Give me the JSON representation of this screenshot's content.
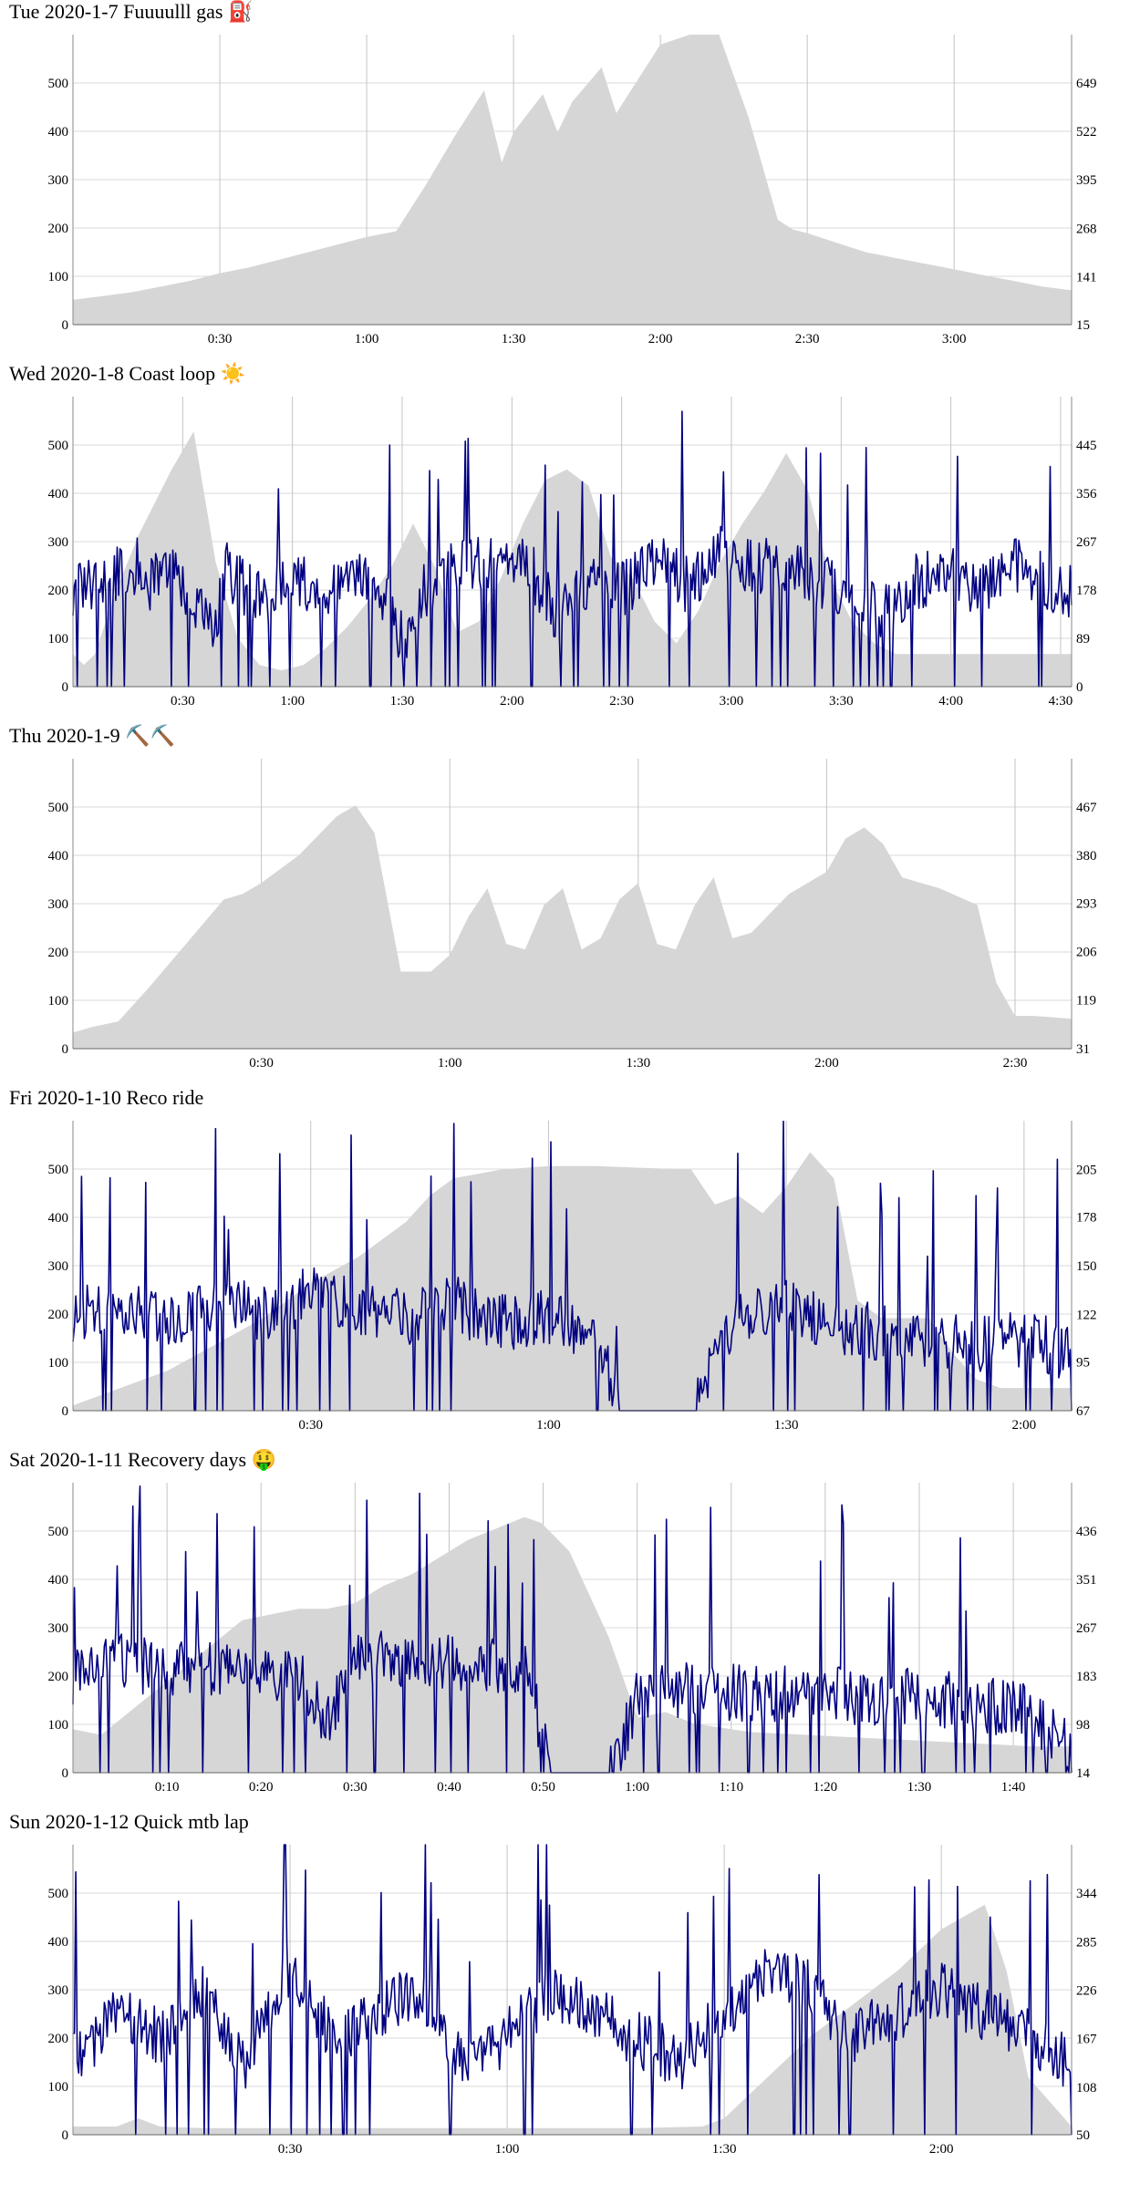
{
  "chart_data": [
    {
      "type": "area",
      "title": "Tue 2020-1-7 Fuuuulll gas ⛽",
      "xlim": [
        0,
        3.4
      ],
      "x_ticks": [
        0.5,
        1.0,
        1.5,
        2.0,
        2.5,
        3.0
      ],
      "x_tick_labels": [
        "0:30",
        "1:00",
        "1:30",
        "2:00",
        "2:30",
        "3:00"
      ],
      "y_left_ticks": [
        0,
        100,
        200,
        300,
        400,
        500
      ],
      "y_left_lim": [
        0,
        600
      ],
      "y_right_ticks": [
        15,
        141,
        268,
        395,
        522,
        649
      ],
      "y_right_lim": [
        15,
        776
      ],
      "grid": true,
      "series": [
        {
          "kind": "area",
          "color": "#d6d6d6",
          "axis": "right",
          "x": [
            0,
            0.1,
            0.2,
            0.3,
            0.4,
            0.5,
            0.6,
            0.7,
            0.8,
            0.9,
            1.0,
            1.1,
            1.2,
            1.3,
            1.4,
            1.46,
            1.5,
            1.6,
            1.65,
            1.7,
            1.8,
            1.85,
            1.9,
            2.0,
            2.1,
            2.2,
            2.3,
            2.4,
            2.45,
            2.5,
            2.6,
            2.7,
            2.8,
            2.9,
            3.0,
            3.1,
            3.2,
            3.3,
            3.4
          ],
          "values": [
            80,
            90,
            100,
            115,
            130,
            150,
            165,
            185,
            205,
            225,
            245,
            260,
            380,
            510,
            630,
            440,
            520,
            620,
            520,
            600,
            690,
            570,
            630,
            750,
            840,
            800,
            560,
            290,
            265,
            255,
            230,
            205,
            190,
            175,
            160,
            145,
            130,
            115,
            105
          ]
        }
      ]
    },
    {
      "type": "line",
      "title": "Wed 2020-1-8 Coast loop ☀️",
      "xlim": [
        0,
        4.55
      ],
      "x_ticks": [
        0.5,
        1.0,
        1.5,
        2.0,
        2.5,
        3.0,
        3.5,
        4.0,
        4.5
      ],
      "x_tick_labels": [
        "0:30",
        "1:00",
        "1:30",
        "2:00",
        "2:30",
        "3:00",
        "3:30",
        "4:00",
        "4:30"
      ],
      "y_left_ticks": [
        0,
        100,
        200,
        300,
        400,
        500
      ],
      "y_left_lim": [
        0,
        600
      ],
      "y_right_ticks": [
        0,
        89,
        178,
        267,
        356,
        445
      ],
      "y_right_lim": [
        0,
        534
      ],
      "grid": true,
      "series": [
        {
          "kind": "area",
          "color": "#d6d6d6",
          "axis": "right",
          "x": [
            0,
            0.05,
            0.1,
            0.2,
            0.3,
            0.45,
            0.55,
            0.65,
            0.75,
            0.85,
            0.95,
            1.05,
            1.15,
            1.25,
            1.35,
            1.45,
            1.55,
            1.65,
            1.75,
            1.85,
            1.95,
            2.05,
            2.15,
            2.25,
            2.35,
            2.45,
            2.55,
            2.65,
            2.75,
            2.85,
            2.95,
            3.05,
            3.15,
            3.25,
            3.35,
            3.45,
            3.55,
            3.65,
            3.75,
            3.85,
            3.95,
            4.05,
            4.15,
            4.25,
            4.35,
            4.45,
            4.55
          ],
          "values": [
            60,
            40,
            60,
            180,
            280,
            400,
            470,
            230,
            90,
            40,
            30,
            40,
            70,
            110,
            160,
            220,
            300,
            220,
            100,
            120,
            200,
            300,
            380,
            400,
            370,
            240,
            200,
            120,
            80,
            140,
            230,
            300,
            360,
            430,
            360,
            200,
            120,
            80,
            60,
            60,
            60,
            60,
            60,
            60,
            60,
            60,
            60
          ]
        },
        {
          "kind": "line",
          "color": "#000080",
          "axis": "left",
          "x": [
            0,
            0.3,
            0.35,
            0.4,
            0.65,
            0.7,
            0.85,
            1.0,
            1.15,
            1.3,
            1.45,
            1.5,
            1.6,
            1.75,
            1.9,
            2.05,
            2.2,
            2.35,
            2.5,
            2.65,
            2.8,
            2.95,
            3.1,
            3.25,
            3.4,
            3.55,
            3.7,
            3.85,
            4.0,
            4.15,
            4.3,
            4.45,
            4.55
          ],
          "values": [
            200,
            250,
            200,
            260,
            120,
            240,
            180,
            220,
            200,
            230,
            160,
            90,
            200,
            250,
            260,
            270,
            150,
            220,
            200,
            260,
            210,
            280,
            240,
            260,
            220,
            200,
            150,
            220,
            230,
            200,
            250,
            210,
            200
          ]
        }
      ]
    },
    {
      "type": "area",
      "title": "Thu 2020-1-9 ⛏️⛏️",
      "xlim": [
        0,
        2.65
      ],
      "x_ticks": [
        0.5,
        1.0,
        1.5,
        2.0,
        2.5
      ],
      "x_tick_labels": [
        "0:30",
        "1:00",
        "1:30",
        "2:00",
        "2:30"
      ],
      "y_left_ticks": [
        0,
        100,
        200,
        300,
        400,
        500
      ],
      "y_left_lim": [
        0,
        600
      ],
      "y_right_ticks": [
        31,
        119,
        206,
        293,
        380,
        467
      ],
      "y_right_lim": [
        31,
        554
      ],
      "grid": true,
      "series": [
        {
          "kind": "area",
          "color": "#d6d6d6",
          "axis": "right",
          "x": [
            0,
            0.05,
            0.12,
            0.2,
            0.3,
            0.4,
            0.45,
            0.5,
            0.6,
            0.7,
            0.75,
            0.8,
            0.87,
            0.95,
            1.0,
            1.05,
            1.1,
            1.15,
            1.2,
            1.25,
            1.3,
            1.35,
            1.4,
            1.45,
            1.5,
            1.55,
            1.6,
            1.65,
            1.7,
            1.75,
            1.8,
            1.9,
            2.0,
            2.05,
            2.1,
            2.15,
            2.2,
            2.3,
            2.4,
            2.45,
            2.5,
            2.55,
            2.65
          ],
          "values": [
            60,
            70,
            80,
            140,
            220,
            300,
            310,
            330,
            380,
            450,
            470,
            420,
            170,
            170,
            200,
            270,
            320,
            220,
            210,
            290,
            320,
            210,
            230,
            300,
            330,
            220,
            210,
            290,
            340,
            230,
            240,
            310,
            350,
            410,
            430,
            400,
            340,
            320,
            290,
            150,
            90,
            90,
            85
          ]
        }
      ]
    },
    {
      "type": "line",
      "title": "Fri 2020-1-10 Reco ride",
      "xlim": [
        0,
        2.1
      ],
      "x_ticks": [
        0.5,
        1.0,
        1.5,
        2.0
      ],
      "x_tick_labels": [
        "0:30",
        "1:00",
        "1:30",
        "2:00"
      ],
      "y_left_ticks": [
        0,
        100,
        200,
        300,
        400,
        500
      ],
      "y_left_lim": [
        0,
        600
      ],
      "y_right_ticks": [
        67,
        95,
        122,
        150,
        178,
        205
      ],
      "y_right_lim": [
        67,
        233
      ],
      "grid": true,
      "series": [
        {
          "kind": "area",
          "color": "#d6d6d6",
          "axis": "right",
          "x": [
            0,
            0.1,
            0.2,
            0.3,
            0.4,
            0.5,
            0.6,
            0.7,
            0.75,
            0.8,
            0.9,
            1.0,
            1.1,
            1.2,
            1.3,
            1.35,
            1.4,
            1.45,
            1.5,
            1.55,
            1.6,
            1.65,
            1.7,
            1.75,
            1.8,
            1.85,
            1.9,
            1.95,
            2.0,
            2.1
          ],
          "values": [
            70,
            80,
            90,
            105,
            120,
            140,
            155,
            175,
            190,
            200,
            205,
            207,
            207,
            206,
            205,
            185,
            190,
            180,
            195,
            215,
            200,
            130,
            120,
            120,
            120,
            100,
            85,
            80,
            80,
            80
          ]
        },
        {
          "kind": "line",
          "color": "#000080",
          "axis": "left",
          "x": [
            0,
            0.1,
            0.2,
            0.3,
            0.4,
            0.5,
            0.6,
            0.7,
            0.8,
            0.9,
            1.0,
            1.1,
            1.15,
            1.3,
            1.4,
            1.5,
            1.6,
            1.7,
            1.8,
            1.9,
            2.0,
            2.1
          ],
          "values": [
            200,
            220,
            180,
            230,
            200,
            240,
            210,
            190,
            220,
            180,
            200,
            150,
            0,
            0,
            200,
            220,
            180,
            160,
            150,
            140,
            150,
            120
          ]
        }
      ]
    },
    {
      "type": "line",
      "title": "Sat 2020-1-11 Recovery days 🤑",
      "xlim": [
        0,
        1.77
      ],
      "x_ticks": [
        0.1667,
        0.3333,
        0.5,
        0.6667,
        0.8333,
        1.0,
        1.1667,
        1.3333,
        1.5,
        1.6667
      ],
      "x_tick_labels": [
        "0:10",
        "0:20",
        "0:30",
        "0:40",
        "0:50",
        "1:00",
        "1:10",
        "1:20",
        "1:30",
        "1:40"
      ],
      "y_left_ticks": [
        0,
        100,
        200,
        300,
        400,
        500
      ],
      "y_left_lim": [
        0,
        600
      ],
      "y_right_ticks": [
        14,
        98,
        183,
        267,
        351,
        436
      ],
      "y_right_lim": [
        14,
        520
      ],
      "grid": true,
      "series": [
        {
          "kind": "area",
          "color": "#d6d6d6",
          "axis": "right",
          "x": [
            0,
            0.05,
            0.1,
            0.2,
            0.3,
            0.4,
            0.45,
            0.5,
            0.55,
            0.6,
            0.7,
            0.8,
            0.83,
            0.88,
            0.95,
            1.0,
            1.05,
            1.1,
            1.2,
            1.3,
            1.4,
            1.5,
            1.6,
            1.7,
            1.77
          ],
          "values": [
            90,
            80,
            120,
            200,
            280,
            300,
            300,
            310,
            340,
            360,
            420,
            460,
            450,
            400,
            250,
            110,
            120,
            100,
            85,
            80,
            75,
            70,
            65,
            60,
            60
          ]
        },
        {
          "kind": "line",
          "color": "#000080",
          "axis": "left",
          "x": [
            0,
            0.05,
            0.1,
            0.2,
            0.3,
            0.4,
            0.45,
            0.5,
            0.6,
            0.7,
            0.8,
            0.85,
            0.9,
            0.95,
            1.0,
            1.1,
            1.2,
            1.3,
            1.4,
            1.5,
            1.6,
            1.7,
            1.77
          ],
          "values": [
            200,
            250,
            220,
            220,
            210,
            200,
            100,
            250,
            220,
            230,
            220,
            0,
            0,
            0,
            150,
            180,
            160,
            170,
            150,
            160,
            140,
            130,
            40
          ]
        }
      ]
    },
    {
      "type": "line",
      "title": "Sun 2020-1-12 Quick mtb lap",
      "xlim": [
        0,
        2.3
      ],
      "x_ticks": [
        0.5,
        1.0,
        1.5,
        2.0
      ],
      "x_tick_labels": [
        "0:30",
        "1:00",
        "1:30",
        "2:00"
      ],
      "y_left_ticks": [
        0,
        100,
        200,
        300,
        400,
        500
      ],
      "y_left_lim": [
        0,
        600
      ],
      "y_right_ticks": [
        50,
        108,
        167,
        226,
        285,
        344
      ],
      "y_right_lim": [
        50,
        403
      ],
      "grid": true,
      "series": [
        {
          "kind": "area",
          "color": "#d6d6d6",
          "axis": "right",
          "x": [
            0,
            0.1,
            0.15,
            0.2,
            0.3,
            0.5,
            0.7,
            0.9,
            1.1,
            1.3,
            1.45,
            1.5,
            1.6,
            1.7,
            1.8,
            1.9,
            2.0,
            2.1,
            2.15,
            2.2,
            2.3
          ],
          "values": [
            60,
            60,
            70,
            60,
            58,
            58,
            58,
            58,
            58,
            58,
            60,
            70,
            120,
            170,
            210,
            250,
            300,
            330,
            250,
            120,
            60
          ]
        },
        {
          "kind": "line",
          "color": "#000080",
          "axis": "left",
          "x": [
            0,
            0.1,
            0.2,
            0.3,
            0.4,
            0.5,
            0.6,
            0.7,
            0.8,
            0.9,
            1.0,
            1.1,
            1.2,
            1.3,
            1.4,
            1.5,
            1.6,
            1.7,
            1.8,
            1.9,
            2.0,
            2.1,
            2.2,
            2.3
          ],
          "values": [
            150,
            250,
            200,
            300,
            150,
            350,
            200,
            250,
            300,
            150,
            200,
            300,
            250,
            200,
            150,
            250,
            350,
            300,
            200,
            250,
            300,
            250,
            200,
            150
          ]
        }
      ]
    }
  ]
}
